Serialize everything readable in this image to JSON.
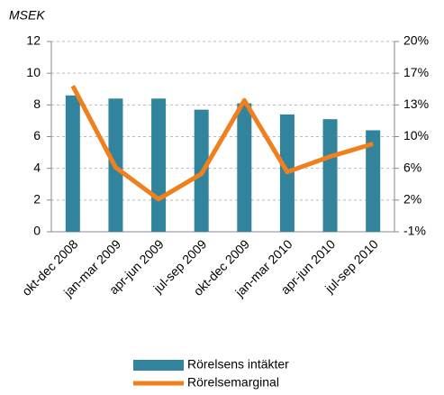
{
  "chart_data": {
    "type": "bar_line",
    "y_label": "MSEK",
    "categories": [
      "okt-dec 2008",
      "jan-mar 2009",
      "apr-jun 2009",
      "jul-sep 2009",
      "okt-dec 2009",
      "jan-mar 2010",
      "apr-jun 2010",
      "jul-sep 2010"
    ],
    "series": [
      {
        "name": "Rörelsens intäkter",
        "type": "bar",
        "color": "#31849b",
        "values": [
          8.6,
          8.4,
          8.4,
          7.7,
          8.1,
          7.4,
          7.1,
          6.4
        ]
      },
      {
        "name": "Rörelsemarginal",
        "type": "line",
        "axis": "y2",
        "color": "#f07f1e",
        "values": [
          15.1,
          6.1,
          2.6,
          5.4,
          13.5,
          5.6,
          7.3,
          8.7
        ]
      }
    ],
    "ylim": [
      0,
      12
    ],
    "yticks": [
      0,
      2,
      4,
      6,
      8,
      10,
      12
    ],
    "y2lim": [
      -1,
      20
    ],
    "y2ticks": [
      {
        "value": -1,
        "label": "-1%"
      },
      {
        "value": 2.5,
        "label": "2%"
      },
      {
        "value": 6,
        "label": "6%"
      },
      {
        "value": 9.5,
        "label": "10%"
      },
      {
        "value": 13,
        "label": "13%"
      },
      {
        "value": 16.5,
        "label": "17%"
      },
      {
        "value": 20,
        "label": "20%"
      }
    ],
    "grid": true,
    "legend": "bottom"
  }
}
